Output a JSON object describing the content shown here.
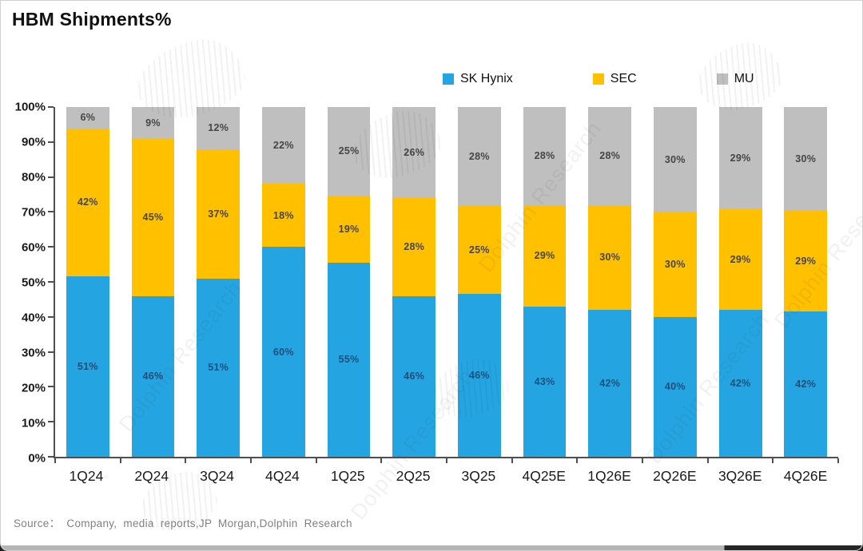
{
  "title": "HBM Shipments%",
  "source": "Source： Company, media reports,JP Morgan,Dolphin Research",
  "watermark": {
    "text": "Dolphin Research"
  },
  "colors": {
    "sk_hynix": "#24A5E1",
    "sec": "#FFC000",
    "mu": "#BFBFBF",
    "axis": "#4f4f4f",
    "label_on_blue": "#1F4E79",
    "label_on_other": "#454545"
  },
  "chart_data": {
    "type": "bar",
    "stacked": true,
    "percent_stacked": true,
    "title": "HBM Shipments%",
    "categories": [
      "1Q24",
      "2Q24",
      "3Q24",
      "4Q24",
      "1Q25",
      "2Q25",
      "3Q25",
      "4Q25E",
      "1Q26E",
      "2Q26E",
      "3Q26E",
      "4Q26E"
    ],
    "series": [
      {
        "name": "SK Hynix",
        "color": "#24A5E1",
        "label_color": "#1F4E79",
        "values": [
          51,
          46,
          51,
          60,
          55,
          46,
          46,
          43,
          42,
          40,
          42,
          42
        ]
      },
      {
        "name": "SEC",
        "color": "#FFC000",
        "label_color": "#454545",
        "values": [
          42,
          45,
          37,
          18,
          19,
          28,
          25,
          29,
          30,
          30,
          29,
          29
        ]
      },
      {
        "name": "MU",
        "color": "#BFBFBF",
        "label_color": "#454545",
        "values": [
          6,
          9,
          12,
          22,
          25,
          26,
          28,
          28,
          28,
          30,
          29,
          30
        ]
      }
    ],
    "value_suffix": "%",
    "y_ticks": [
      "100%",
      "90%",
      "80%",
      "70%",
      "60%",
      "50%",
      "40%",
      "30%",
      "20%",
      "10%",
      "0%"
    ],
    "ylim": [
      0,
      100
    ],
    "grid": false,
    "legend_position": "top-center",
    "xlabel": "",
    "ylabel": ""
  }
}
